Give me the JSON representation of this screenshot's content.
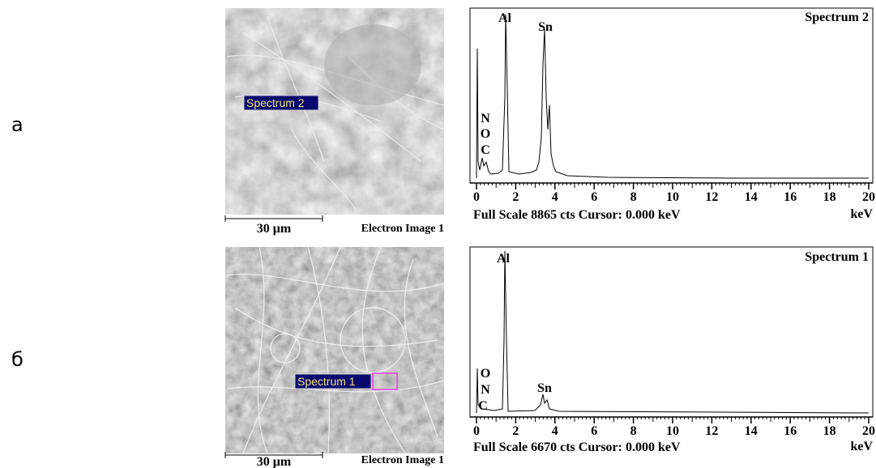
{
  "panels": [
    {
      "label": "а",
      "image": {
        "region_label": "Spectrum 2",
        "scale_bar": "30 μm",
        "caption": "Electron Image 1"
      },
      "spectrum": {
        "title": "Spectrum 2",
        "peaks": [
          "Al",
          "Sn",
          "N",
          "O",
          "C"
        ],
        "xticks": [
          0,
          2,
          4,
          6,
          8,
          10,
          12,
          14,
          16,
          18,
          20
        ],
        "unit": "keV",
        "status": "Full Scale 8865 cts  Cursor: 0.000 keV"
      }
    },
    {
      "label": "б",
      "image": {
        "region_label": "Spectrum 1",
        "scale_bar": "30 μm",
        "caption": "Electron Image 1"
      },
      "spectrum": {
        "title": "Spectrum 1",
        "peaks": [
          "Al",
          "Sn",
          "O",
          "N",
          "C"
        ],
        "xticks": [
          0,
          2,
          4,
          6,
          8,
          10,
          12,
          14,
          16,
          18,
          20
        ],
        "unit": "keV",
        "status": "Full Scale 6670 cts  Cursor: 0.000 keV"
      }
    }
  ]
}
